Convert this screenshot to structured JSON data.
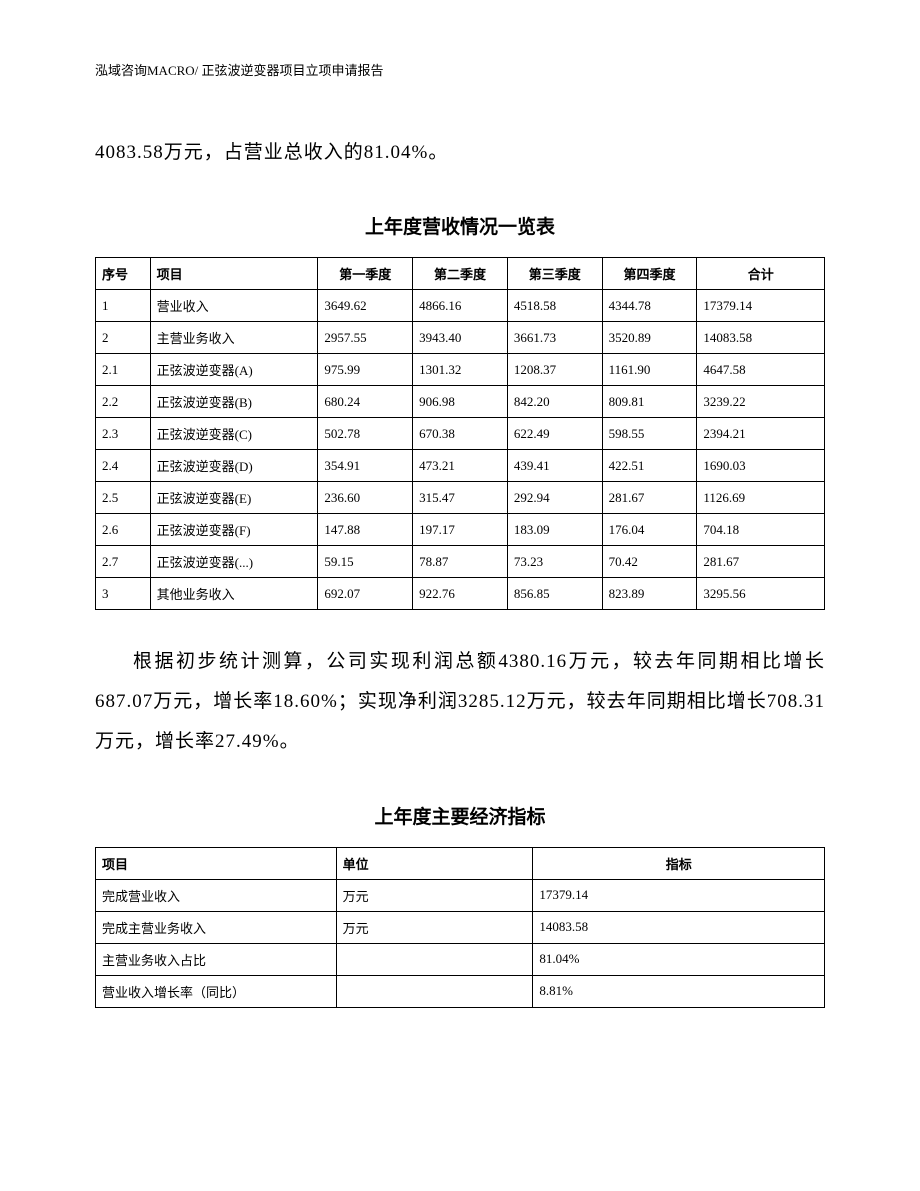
{
  "header": "泓域咨询MACRO/    正弦波逆变器项目立项申请报告",
  "intro_text": "4083.58万元，占营业总收入的81.04%。",
  "revenue_table": {
    "title": "上年度营收情况一览表",
    "columns": [
      "序号",
      "项目",
      "第一季度",
      "第二季度",
      "第三季度",
      "第四季度",
      "合计"
    ],
    "rows": [
      [
        "1",
        "营业收入",
        "3649.62",
        "4866.16",
        "4518.58",
        "4344.78",
        "17379.14"
      ],
      [
        "2",
        "主营业务收入",
        "2957.55",
        "3943.40",
        "3661.73",
        "3520.89",
        "14083.58"
      ],
      [
        "2.1",
        "正弦波逆变器(A)",
        "975.99",
        "1301.32",
        "1208.37",
        "1161.90",
        "4647.58"
      ],
      [
        "2.2",
        "正弦波逆变器(B)",
        "680.24",
        "906.98",
        "842.20",
        "809.81",
        "3239.22"
      ],
      [
        "2.3",
        "正弦波逆变器(C)",
        "502.78",
        "670.38",
        "622.49",
        "598.55",
        "2394.21"
      ],
      [
        "2.4",
        "正弦波逆变器(D)",
        "354.91",
        "473.21",
        "439.41",
        "422.51",
        "1690.03"
      ],
      [
        "2.5",
        "正弦波逆变器(E)",
        "236.60",
        "315.47",
        "292.94",
        "281.67",
        "1126.69"
      ],
      [
        "2.6",
        "正弦波逆变器(F)",
        "147.88",
        "197.17",
        "183.09",
        "176.04",
        "704.18"
      ],
      [
        "2.7",
        "正弦波逆变器(...)",
        "59.15",
        "78.87",
        "73.23",
        "70.42",
        "281.67"
      ],
      [
        "3",
        "其他业务收入",
        "692.07",
        "922.76",
        "856.85",
        "823.89",
        "3295.56"
      ]
    ]
  },
  "body_text": "根据初步统计测算，公司实现利润总额4380.16万元，较去年同期相比增长687.07万元，增长率18.60%；实现净利润3285.12万元，较去年同期相比增长708.31万元，增长率27.49%。",
  "indicators_table": {
    "title": "上年度主要经济指标",
    "columns": [
      "项目",
      "单位",
      "指标"
    ],
    "rows": [
      [
        "完成营业收入",
        "万元",
        "17379.14"
      ],
      [
        "完成主营业务收入",
        "万元",
        "14083.58"
      ],
      [
        "主营业务收入占比",
        "",
        "81.04%"
      ],
      [
        "营业收入增长率（同比）",
        "",
        "8.81%"
      ]
    ]
  }
}
